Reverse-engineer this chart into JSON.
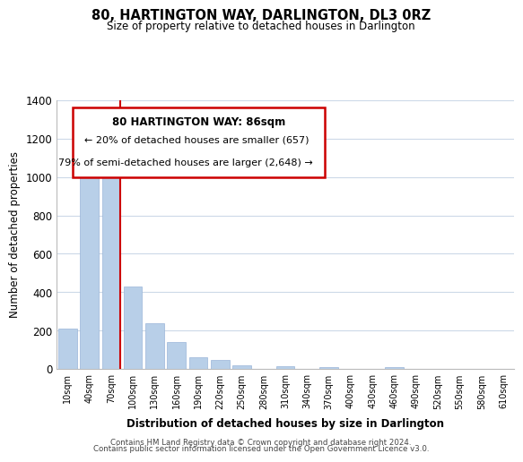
{
  "title": "80, HARTINGTON WAY, DARLINGTON, DL3 0RZ",
  "subtitle": "Size of property relative to detached houses in Darlington",
  "xlabel": "Distribution of detached houses by size in Darlington",
  "ylabel": "Number of detached properties",
  "bar_labels": [
    "10sqm",
    "40sqm",
    "70sqm",
    "100sqm",
    "130sqm",
    "160sqm",
    "190sqm",
    "220sqm",
    "250sqm",
    "280sqm",
    "310sqm",
    "340sqm",
    "370sqm",
    "400sqm",
    "430sqm",
    "460sqm",
    "490sqm",
    "520sqm",
    "550sqm",
    "580sqm",
    "610sqm"
  ],
  "bar_values": [
    210,
    1120,
    1095,
    430,
    240,
    140,
    60,
    45,
    20,
    0,
    15,
    0,
    10,
    0,
    0,
    10,
    0,
    0,
    0,
    0,
    0
  ],
  "bar_color": "#b8cfe8",
  "bar_edge_color": "#9ab5d8",
  "vline_x": 2.42,
  "vline_color": "#cc0000",
  "ylim": [
    0,
    1400
  ],
  "yticks": [
    0,
    200,
    400,
    600,
    800,
    1000,
    1200,
    1400
  ],
  "annotation_title": "80 HARTINGTON WAY: 86sqm",
  "annotation_line1": "← 20% of detached houses are smaller (657)",
  "annotation_line2": "79% of semi-detached houses are larger (2,648) →",
  "footer1": "Contains HM Land Registry data © Crown copyright and database right 2024.",
  "footer2": "Contains public sector information licensed under the Open Government Licence v3.0.",
  "bg_color": "#ffffff",
  "grid_color": "#ccd9e8"
}
